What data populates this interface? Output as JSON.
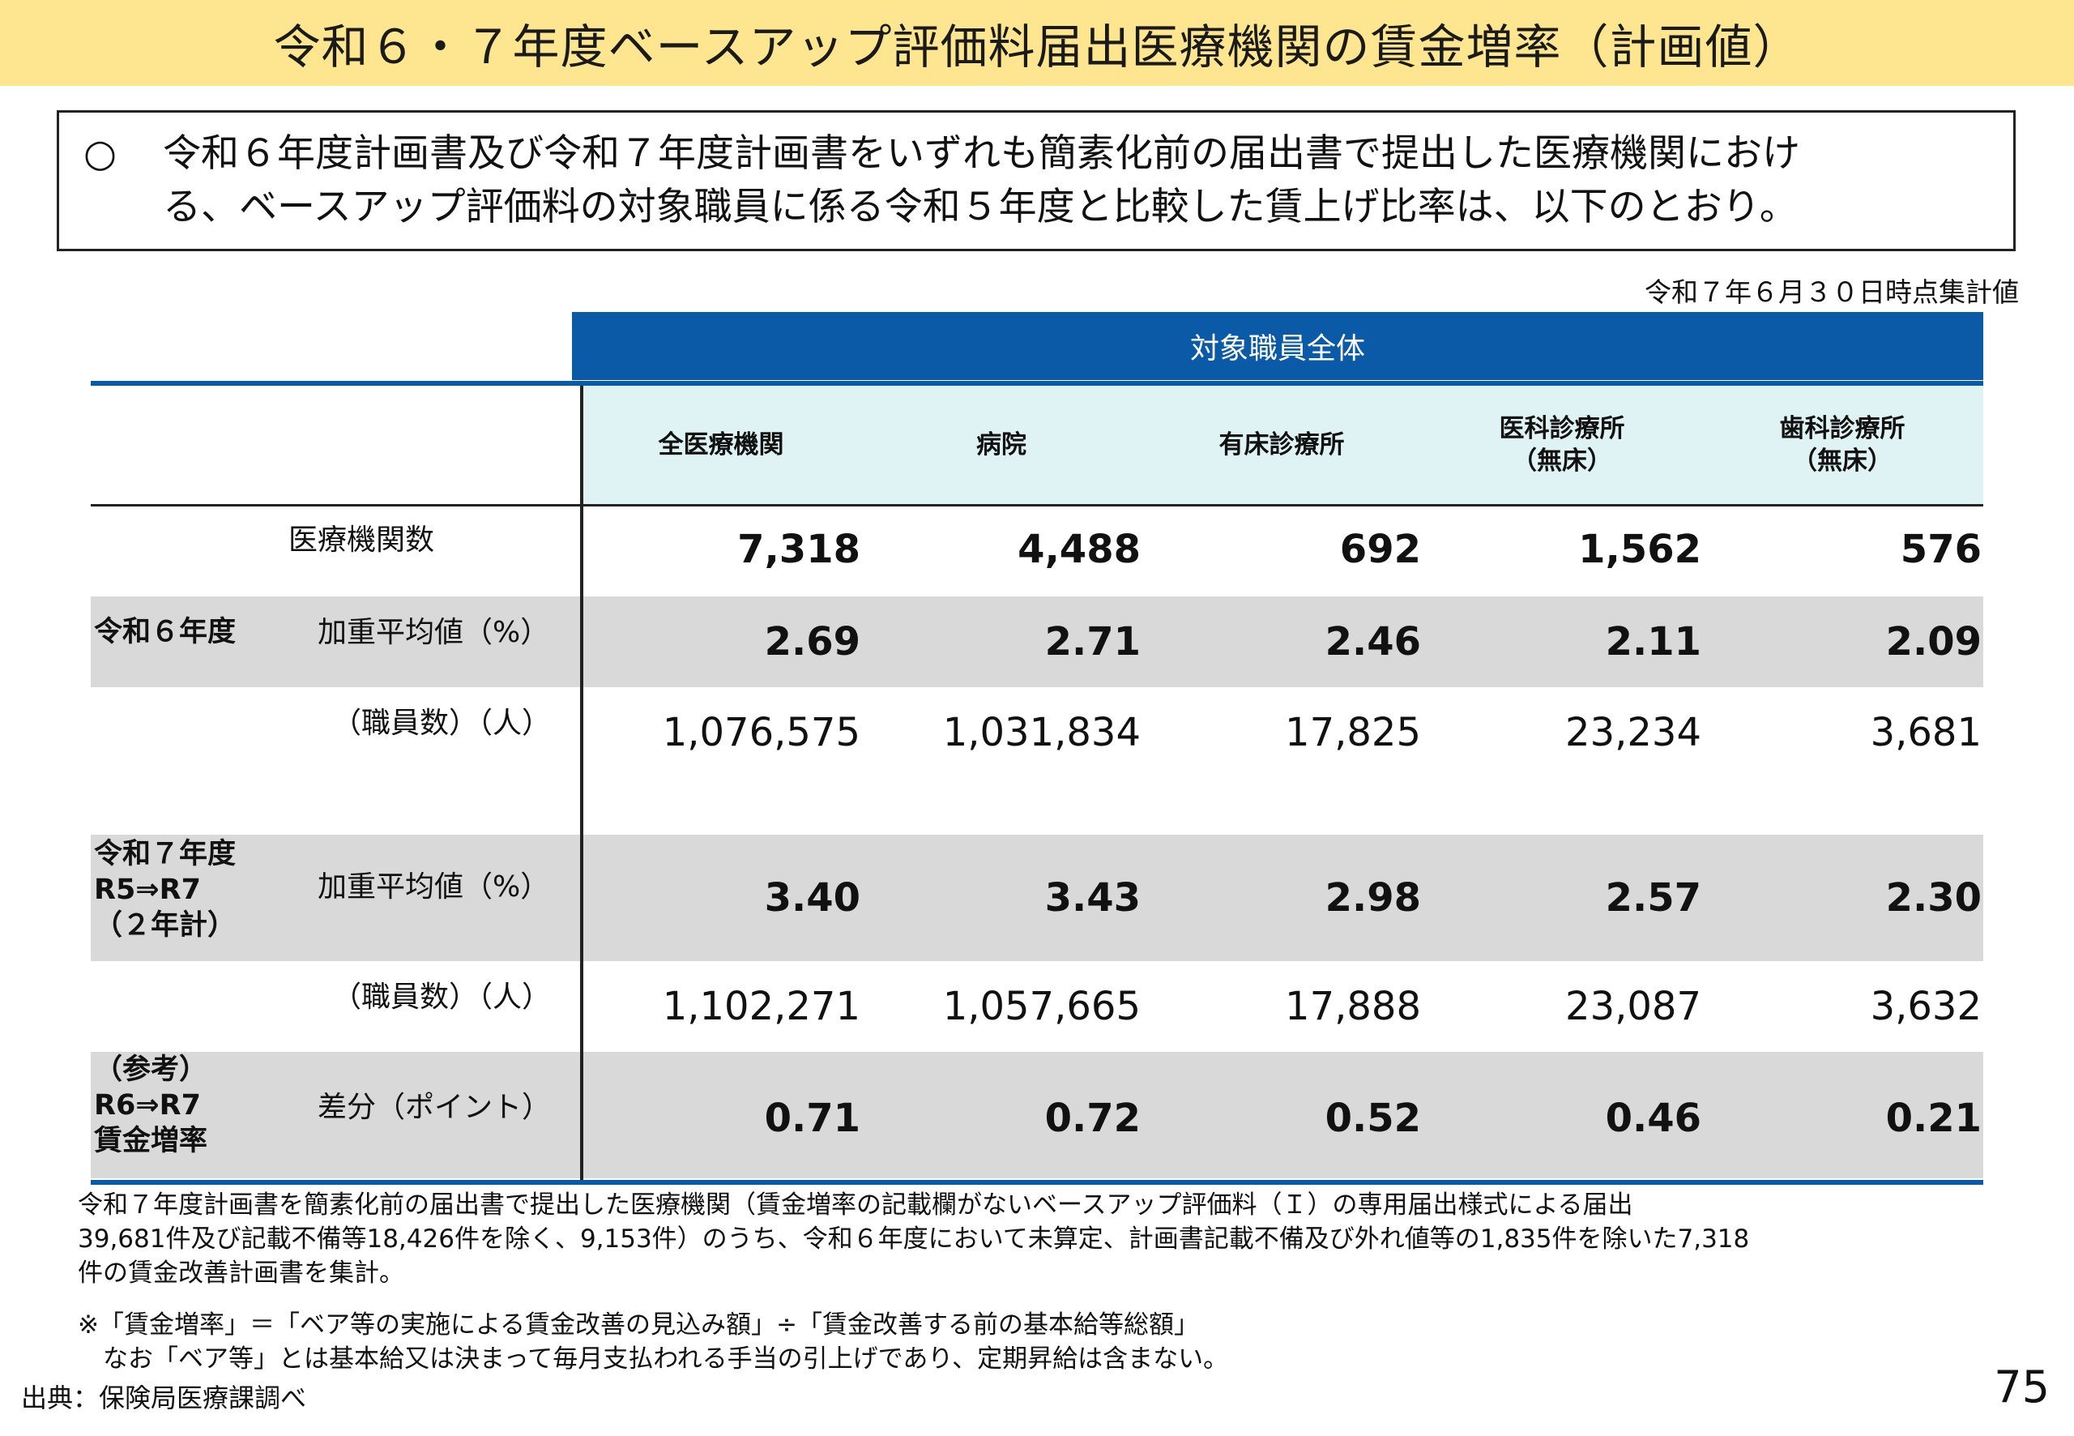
{
  "title": "令和６・７年度ベースアップ評価料届出医療機関の賃金増率（計画値）",
  "summary": {
    "bullet": "○",
    "line1": "令和６年度計画書及び令和７年度計画書をいずれも簡素化前の届出書で提出した医療機関におけ",
    "line2": "る、ベースアップ評価料の対象職員に係る令和５年度と比較した賃上げ比率は、以下のとおり。"
  },
  "as_of": "令和７年６月３０日時点集計値",
  "table": {
    "group_header": "対象職員全体",
    "columns": [
      {
        "line1": "全医療機関",
        "line2": ""
      },
      {
        "line1": "病院",
        "line2": ""
      },
      {
        "line1": "有床診療所",
        "line2": ""
      },
      {
        "line1": "医科診療所",
        "line2": "（無床）"
      },
      {
        "line1": "歯科診療所",
        "line2": "（無床）"
      }
    ],
    "rows": {
      "institutions": {
        "label": "医療機関数",
        "values": [
          "7,318",
          "4,488",
          "692",
          "1,562",
          "576"
        ]
      },
      "r6_avg": {
        "group": "令和６年度",
        "label": "加重平均値（%）",
        "values": [
          "2.69",
          "2.71",
          "2.46",
          "2.11",
          "2.09"
        ]
      },
      "r6_staff": {
        "label": "（職員数）（人）",
        "values": [
          "1,076,575",
          "1,031,834",
          "17,825",
          "23,234",
          "3,681"
        ]
      },
      "r7_avg": {
        "group_line1": "令和７年度",
        "group_line2": "R5⇒R7",
        "group_line3": "（２年計）",
        "label": "加重平均値（%）",
        "values": [
          "3.40",
          "3.43",
          "2.98",
          "2.57",
          "2.30"
        ]
      },
      "r7_staff": {
        "label": "（職員数）（人）",
        "values": [
          "1,102,271",
          "1,057,665",
          "17,888",
          "23,087",
          "3,632"
        ]
      },
      "diff": {
        "group_line1": "（参考）",
        "group_line2": "R6⇒R7",
        "group_line3": "賃金増率",
        "label": "差分（ポイント）",
        "values": [
          "0.71",
          "0.72",
          "0.52",
          "0.46",
          "0.21"
        ]
      }
    }
  },
  "notes": {
    "line1": "令和７年度計画書を簡素化前の届出書で提出した医療機関（賃金増率の記載欄がないベースアップ評価料（Ｉ）の専用届出様式による届出",
    "line2": "39,681件及び記載不備等18,426件を除く、9,153件）のうち、令和６年度において未算定、計画書記載不備及び外れ値等の1,835件を除いた7,318",
    "line3": "件の賃金改善計画書を集計。",
    "line4": "※「賃金増率」＝「ベア等の実施による賃金改善の見込み額」÷「賃金改善する前の基本給等総額」",
    "line5": "　なお「ベア等」とは基本給又は決まって毎月支払われる手当の引上げであり、定期昇給は含まない。"
  },
  "source": "出典：保険局医療課調べ",
  "page_number": "75",
  "colors": {
    "title_bg": "#fde68f",
    "header_blue": "#0b5aa8",
    "header_cells": "#dff3f4",
    "row_gray": "#d9d9d9"
  }
}
